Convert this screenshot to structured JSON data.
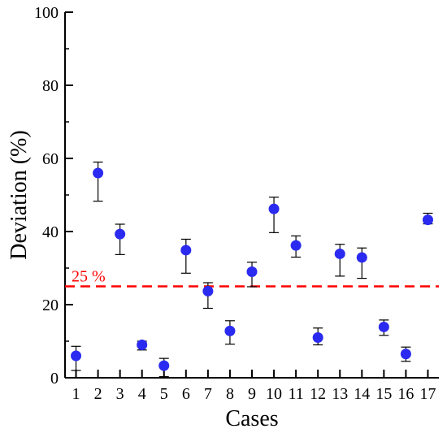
{
  "chart_data": {
    "type": "scatter",
    "title": "",
    "xlabel": "Cases",
    "ylabel": "Deviation (%)",
    "xlim": [
      0.5,
      17.5
    ],
    "ylim": [
      0,
      100
    ],
    "x_ticks": [
      "1",
      "2",
      "3",
      "4",
      "5",
      "6",
      "7",
      "8",
      "9",
      "10",
      "11",
      "12",
      "13",
      "14",
      "15",
      "16",
      "17"
    ],
    "y_ticks": [
      0,
      20,
      40,
      60,
      80,
      100
    ],
    "grid": false,
    "series": [
      {
        "color": "#2a2af0",
        "x": [
          1,
          2,
          3,
          4,
          5,
          6,
          7,
          8,
          9,
          10,
          11,
          12,
          13,
          14,
          15,
          16,
          17
        ],
        "y": [
          6,
          56,
          39.3,
          9,
          3.3,
          34.9,
          23.7,
          12.8,
          29,
          46.2,
          36.2,
          11,
          33.9,
          32.9,
          13.9,
          6.5,
          43.2
        ],
        "err_low": [
          2,
          48.3,
          33.7,
          7.6,
          0.3,
          28.6,
          19,
          9.2,
          24.9,
          39.7,
          33,
          9,
          27.8,
          27.2,
          11.6,
          4.5,
          42.1
        ],
        "err_high": [
          8.6,
          59,
          42,
          10,
          5.3,
          37.9,
          26,
          15.6,
          31.6,
          49.4,
          38.8,
          13.6,
          36.5,
          35.5,
          15.8,
          8.4,
          45
        ]
      }
    ],
    "reference_line": {
      "y": 25,
      "label": "25 %",
      "color": "#ff0000",
      "style": "dashed"
    }
  }
}
